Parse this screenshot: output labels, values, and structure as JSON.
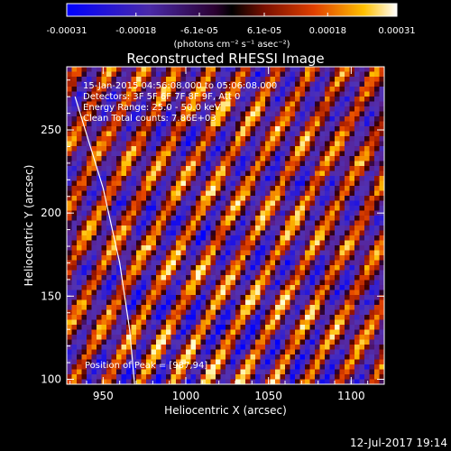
{
  "colorbar": {
    "tick_labels": [
      "-0.00031",
      "-0.00018",
      "-6.1e-05",
      "6.1e-05",
      "0.00018",
      "0.00031"
    ],
    "tick_values": [
      -0.00031,
      -0.00018,
      -6.1e-05,
      6.1e-05,
      0.00018,
      0.00031
    ],
    "range": [
      -0.00031,
      0.00031
    ],
    "unit_label": "(photons cm⁻² s⁻¹ asec⁻²)"
  },
  "chart_data": {
    "type": "heatmap",
    "title": "Reconstructed RHESSI Image",
    "xlabel": "Heliocentric X (arcsec)",
    "ylabel": "Heliocentric Y (arcsec)",
    "xlim": [
      928,
      1120
    ],
    "ylim": [
      97,
      288
    ],
    "xticks": [
      950,
      1000,
      1050,
      1100
    ],
    "yticks": [
      100,
      150,
      200,
      250
    ],
    "x_tick_labels": [
      "950",
      "1000",
      "1050",
      "1100"
    ],
    "y_tick_labels": [
      "100",
      "150",
      "200",
      "250"
    ],
    "annotations": [
      "15-Jan-2015 04:56:08.000 to 05:06:08.000",
      "Detectors: 3F 5F 6F 7F 8F 9F, Att 0",
      "Energy Range: 25.0 - 50.0 keV",
      "Clean    Total counts: 7.86E+03"
    ],
    "peak_label": "Position of Peak = [987,94]",
    "limb_curve": [
      [
        933,
        270
      ],
      [
        950,
        215
      ],
      [
        960,
        170
      ],
      [
        966,
        130
      ],
      [
        969,
        97
      ]
    ]
  },
  "footer": {
    "timestamp": "12-Jul-2017 19:14"
  }
}
